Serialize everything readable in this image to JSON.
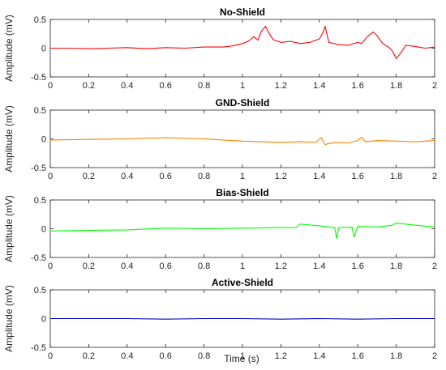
{
  "figure": {
    "xlabel": "Time (s)"
  },
  "chart_data": [
    {
      "type": "line",
      "title": "No-Shield",
      "ylabel": "Amplitude (mV)",
      "xlim": [
        0,
        2
      ],
      "ylim": [
        -0.5,
        0.5
      ],
      "xticks": [
        "0",
        "0.2",
        "0.4",
        "0.6",
        "0.8",
        "1",
        "1.2",
        "1.4",
        "1.6",
        "1.8",
        "2"
      ],
      "yticks": [
        "-0.5",
        "0",
        "0.5"
      ],
      "color": "#ff0000",
      "series": [
        {
          "x": [
            0,
            0.1,
            0.2,
            0.3,
            0.4,
            0.5,
            0.6,
            0.7,
            0.8,
            0.9,
            0.95,
            1.0,
            1.03,
            1.06,
            1.08,
            1.1,
            1.12,
            1.14,
            1.16,
            1.2,
            1.25,
            1.3,
            1.35,
            1.4,
            1.42,
            1.43,
            1.45,
            1.5,
            1.55,
            1.6,
            1.62,
            1.65,
            1.68,
            1.7,
            1.73,
            1.76,
            1.78,
            1.8,
            1.82,
            1.85,
            1.9,
            1.95,
            2.0
          ],
          "values": [
            0.0,
            0.0,
            -0.01,
            0.0,
            0.01,
            -0.01,
            0.01,
            0.0,
            0.02,
            0.02,
            0.04,
            0.08,
            0.12,
            0.2,
            0.14,
            0.3,
            0.38,
            0.25,
            0.15,
            0.1,
            0.12,
            0.08,
            0.1,
            0.16,
            0.28,
            0.38,
            0.1,
            0.06,
            0.05,
            0.1,
            0.08,
            0.2,
            0.28,
            0.22,
            0.08,
            0.02,
            -0.05,
            -0.18,
            -0.1,
            0.05,
            0.03,
            0.0,
            0.02
          ]
        }
      ]
    },
    {
      "type": "line",
      "title": "GND-Shield",
      "ylabel": "Amplitude (mV)",
      "xlim": [
        0,
        2
      ],
      "ylim": [
        -0.5,
        0.5
      ],
      "xticks": [
        "0",
        "0.2",
        "0.4",
        "0.6",
        "0.8",
        "1",
        "1.2",
        "1.4",
        "1.6",
        "1.8",
        "2"
      ],
      "yticks": [
        "-0.5",
        "0",
        "0.5"
      ],
      "color": "#ff8000",
      "series": [
        {
          "x": [
            0,
            0.2,
            0.4,
            0.6,
            0.8,
            1.0,
            1.1,
            1.2,
            1.3,
            1.38,
            1.41,
            1.43,
            1.45,
            1.5,
            1.55,
            1.6,
            1.62,
            1.64,
            1.7,
            1.8,
            1.9,
            2.0
          ],
          "values": [
            -0.02,
            -0.01,
            0.0,
            0.02,
            0.0,
            -0.04,
            -0.05,
            -0.06,
            -0.05,
            -0.06,
            0.02,
            -0.1,
            -0.08,
            -0.06,
            -0.07,
            -0.03,
            0.03,
            -0.05,
            -0.03,
            -0.04,
            -0.05,
            -0.03
          ]
        }
      ]
    },
    {
      "type": "line",
      "title": "Bias-Shield",
      "ylabel": "Amplitude (mV)",
      "xlim": [
        0,
        2
      ],
      "ylim": [
        -0.5,
        0.5
      ],
      "xticks": [
        "0",
        "0.2",
        "0.4",
        "0.6",
        "0.8",
        "1",
        "1.2",
        "1.4",
        "1.6",
        "1.8",
        "2"
      ],
      "yticks": [
        "-0.5",
        "0",
        "0.5"
      ],
      "color": "#00ff00",
      "series": [
        {
          "x": [
            0,
            0.2,
            0.4,
            0.6,
            0.8,
            1.0,
            1.2,
            1.28,
            1.3,
            1.4,
            1.48,
            1.49,
            1.5,
            1.57,
            1.58,
            1.6,
            1.7,
            1.78,
            1.8,
            1.9,
            2.0
          ],
          "values": [
            -0.04,
            -0.03,
            -0.02,
            0.01,
            0.0,
            0.01,
            0.02,
            0.02,
            0.08,
            0.05,
            0.02,
            -0.17,
            0.02,
            0.03,
            -0.14,
            0.04,
            0.03,
            0.06,
            0.1,
            0.06,
            0.03
          ]
        }
      ]
    },
    {
      "type": "line",
      "title": "Active-Shield",
      "ylabel": "Amplitude (mV)",
      "xlim": [
        0,
        2
      ],
      "ylim": [
        -0.5,
        0.5
      ],
      "xticks": [
        "0",
        "0.2",
        "0.4",
        "0.6",
        "0.8",
        "1",
        "1.2",
        "1.4",
        "1.6",
        "1.8",
        "2"
      ],
      "yticks": [
        "-0.5",
        "0",
        "0.5"
      ],
      "color": "#0000c0",
      "series": [
        {
          "x": [
            0,
            0.2,
            0.4,
            0.6,
            0.8,
            1.0,
            1.2,
            1.4,
            1.6,
            1.8,
            2.0
          ],
          "values": [
            0.0,
            0.0,
            0.0,
            -0.01,
            0.0,
            0.0,
            -0.01,
            0.0,
            -0.01,
            0.0,
            0.0
          ]
        }
      ]
    }
  ]
}
